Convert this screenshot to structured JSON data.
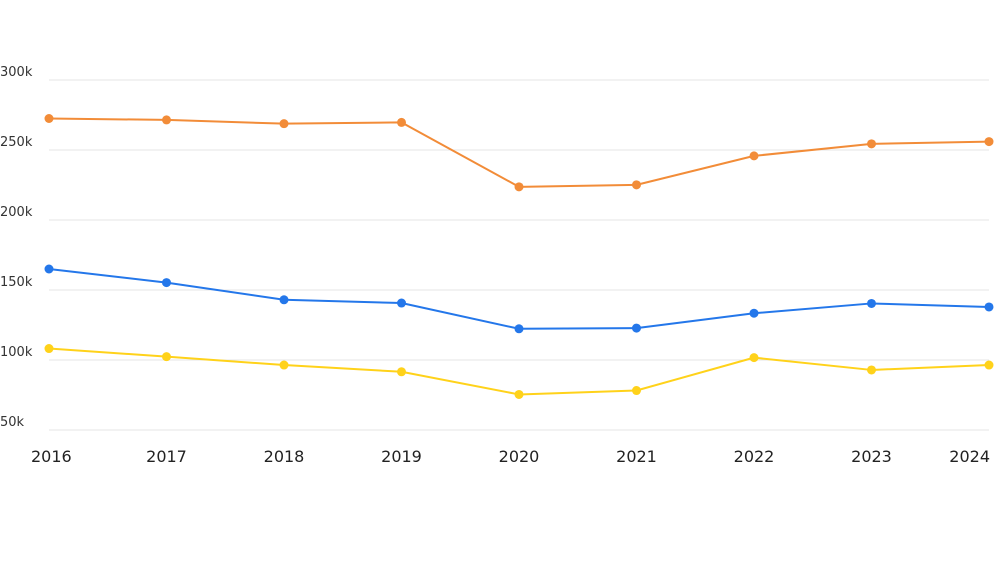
{
  "chart_data": {
    "type": "line",
    "title": "",
    "xlabel": "",
    "ylabel": "",
    "x": [
      "2016",
      "2017",
      "2018",
      "2019",
      "2020",
      "2021",
      "2022",
      "2023",
      "2024"
    ],
    "y_ticks": [
      50000,
      100000,
      150000,
      200000,
      250000,
      300000
    ],
    "y_tick_labels": [
      "50k",
      "100k",
      "150k",
      "200k",
      "250k",
      "300k"
    ],
    "ylim": [
      50000,
      300000
    ],
    "grid": true,
    "legend": "none",
    "series": [
      {
        "color": "#F28C38",
        "values": [
          272500,
          271500,
          268800,
          269700,
          223700,
          225100,
          245800,
          254400,
          256000
        ]
      },
      {
        "color": "#2477EA",
        "values": [
          165000,
          155300,
          143000,
          140700,
          122300,
          122800,
          133400,
          140400,
          137900
        ]
      },
      {
        "color": "#FFD21A",
        "values": [
          108200,
          102400,
          96400,
          91600,
          75400,
          78200,
          101700,
          92900,
          96400
        ]
      }
    ]
  }
}
